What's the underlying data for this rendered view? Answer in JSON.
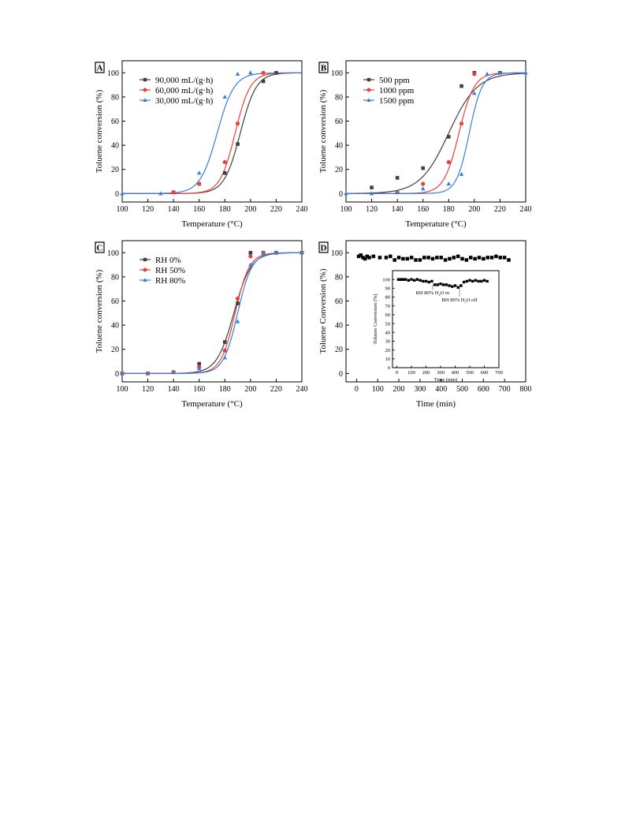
{
  "colors": {
    "black": "#404040",
    "red": "#e8403a",
    "blue": "#3a7fd6"
  },
  "chart_data": [
    {
      "type": "scatter",
      "panel": "A",
      "xlabel": "Temperature (°C)",
      "ylabel": "Toluene conversion (%)",
      "xlim": [
        100,
        240
      ],
      "ylim": [
        -7,
        110
      ],
      "xticks": [
        100,
        120,
        140,
        160,
        180,
        200,
        220,
        240
      ],
      "yticks": [
        0,
        20,
        40,
        60,
        80,
        100
      ],
      "legend": "top-left",
      "series": [
        {
          "name": "90,000 mL/(g·h)",
          "color": "#404040",
          "marker": "square",
          "x": [
            140,
            160,
            180,
            190,
            210,
            220
          ],
          "y": [
            1,
            8,
            17,
            41,
            93,
            100
          ],
          "fit": {
            "t50": 192,
            "k": 0.16,
            "ymax": 100
          }
        },
        {
          "name": "60,000 mL/(g·h)",
          "color": "#e8403a",
          "marker": "circle",
          "x": [
            140,
            160,
            180,
            190,
            210
          ],
          "y": [
            1,
            8,
            26,
            58,
            100
          ],
          "fit": {
            "t50": 188,
            "k": 0.17,
            "ymax": 100
          }
        },
        {
          "name": "30,000 mL/(g·h)",
          "color": "#3a7fd6",
          "marker": "triangle",
          "x": [
            100,
            130,
            160,
            180,
            190,
            200
          ],
          "y": [
            0,
            0,
            17,
            80,
            99,
            100
          ],
          "fit": {
            "t50": 174,
            "k": 0.15,
            "ymax": 100
          }
        }
      ]
    },
    {
      "type": "scatter",
      "panel": "B",
      "xlabel": "Temperature (°C)",
      "ylabel": "Toluene conversion (%)",
      "xlim": [
        100,
        240
      ],
      "ylim": [
        -7,
        110
      ],
      "xticks": [
        100,
        120,
        140,
        160,
        180,
        200,
        220,
        240
      ],
      "yticks": [
        0,
        20,
        40,
        60,
        80,
        100
      ],
      "legend": "top-left",
      "series": [
        {
          "name": "500 ppm",
          "color": "#404040",
          "marker": "square",
          "x": [
            120,
            140,
            160,
            180,
            190,
            200,
            220
          ],
          "y": [
            5,
            13,
            21,
            47,
            89,
            100,
            100
          ],
          "fit": {
            "t50": 180,
            "k": 0.09,
            "ymax": 100
          }
        },
        {
          "name": "1000 ppm",
          "color": "#e8403a",
          "marker": "circle",
          "x": [
            140,
            160,
            180,
            190,
            200
          ],
          "y": [
            1,
            8,
            26,
            58,
            99
          ],
          "fit": {
            "t50": 188,
            "k": 0.17,
            "ymax": 100
          }
        },
        {
          "name": "1500 ppm",
          "color": "#3a7fd6",
          "marker": "triangle",
          "x": [
            100,
            120,
            140,
            160,
            180,
            190,
            200,
            210,
            220,
            240
          ],
          "y": [
            0,
            0,
            1,
            4,
            8,
            16,
            83,
            99,
            100,
            100
          ],
          "fit": {
            "t50": 196,
            "k": 0.2,
            "ymax": 100
          }
        }
      ]
    },
    {
      "type": "scatter",
      "panel": "C",
      "xlabel": "Temperature (°C)",
      "ylabel": "Toluene conversion (%)",
      "xlim": [
        100,
        240
      ],
      "ylim": [
        -7,
        110
      ],
      "xticks": [
        100,
        120,
        140,
        160,
        180,
        200,
        220,
        240
      ],
      "yticks": [
        0,
        20,
        40,
        60,
        80,
        100
      ],
      "legend": "top-left",
      "series": [
        {
          "name": "RH 0%",
          "color": "#404040",
          "marker": "square",
          "x": [
            100,
            120,
            140,
            160,
            180,
            190,
            200,
            210,
            220,
            240
          ],
          "y": [
            0,
            0,
            1,
            8,
            26,
            58,
            100,
            100,
            100,
            100
          ],
          "fit": {
            "t50": 187,
            "k": 0.15,
            "ymax": 100
          }
        },
        {
          "name": "RH 50%",
          "color": "#e8403a",
          "marker": "circle",
          "x": [
            100,
            120,
            140,
            160,
            180,
            190,
            200,
            210,
            220,
            240
          ],
          "y": [
            0,
            0,
            1,
            5,
            19,
            62,
            97,
            100,
            100,
            100
          ],
          "fit": {
            "t50": 188,
            "k": 0.18,
            "ymax": 100
          }
        },
        {
          "name": "RH 80%",
          "color": "#3a7fd6",
          "marker": "triangle",
          "x": [
            100,
            120,
            140,
            160,
            180,
            190,
            200,
            210,
            220,
            240
          ],
          "y": [
            0,
            0,
            1,
            4,
            13,
            43,
            90,
            99,
            100,
            100
          ],
          "fit": {
            "t50": 190,
            "k": 0.18,
            "ymax": 100
          }
        }
      ]
    },
    {
      "type": "scatter",
      "panel": "D",
      "xlabel": "Time (min)",
      "ylabel": "Toluene Conversion (%)",
      "xlim": [
        -50,
        800
      ],
      "ylim": [
        -7,
        110
      ],
      "xticks": [
        0,
        100,
        200,
        300,
        400,
        500,
        600,
        700,
        800
      ],
      "yticks": [
        0,
        20,
        40,
        60,
        80,
        100
      ],
      "series": [
        {
          "name": "",
          "color": "#000000",
          "marker": "square",
          "x": [
            10,
            20,
            30,
            40,
            50,
            60,
            80,
            110,
            140,
            160,
            180,
            200,
            220,
            240,
            260,
            280,
            300,
            320,
            340,
            360,
            380,
            400,
            420,
            440,
            460,
            480,
            500,
            520,
            540,
            560,
            580,
            600,
            620,
            640,
            660,
            680,
            700,
            720
          ],
          "y": [
            97,
            98,
            96,
            95,
            97,
            96,
            97,
            96,
            96,
            97,
            94,
            96,
            95,
            95,
            96,
            94,
            94,
            96,
            96,
            95,
            96,
            96,
            94,
            95,
            96,
            97,
            95,
            94,
            96,
            95,
            96,
            95,
            96,
            96,
            97,
            96,
            96,
            94
          ]
        }
      ],
      "inset": {
        "xlabel": "Time (min)",
        "ylabel": "Toluene Conversion (%)",
        "xlim": [
          -30,
          700
        ],
        "ylim": [
          0,
          110
        ],
        "xticks": [
          0,
          100,
          200,
          300,
          400,
          500,
          600,
          700
        ],
        "yticks": [
          0,
          10,
          20,
          30,
          40,
          50,
          60,
          70,
          80,
          90,
          100
        ],
        "annotations": [
          {
            "text": "RH 80% H",
            "sub": "2",
            "tail": "O in",
            "x": 245
          },
          {
            "text": "RH 80% H",
            "sub": "2",
            "tail": "O off",
            "x": 430
          }
        ],
        "series": [
          {
            "name": "",
            "color": "#000000",
            "marker": "square",
            "x": [
              10,
              20,
              30,
              40,
              50,
              60,
              80,
              100,
              120,
              140,
              160,
              180,
              200,
              220,
              240,
              260,
              280,
              300,
              320,
              340,
              360,
              380,
              400,
              420,
              440,
              460,
              480,
              500,
              520,
              540,
              560,
              580,
              600,
              620
            ],
            "y": [
              100,
              100,
              100,
              100,
              100,
              100,
              99,
              100,
              99,
              100,
              99,
              98,
              98,
              97,
              98,
              94,
              94,
              95,
              94,
              94,
              93,
              92,
              93,
              91,
              93,
              97,
              98,
              99,
              98,
              99,
              98,
              98,
              99,
              98
            ]
          }
        ]
      }
    }
  ],
  "panel_tags": {
    "a": "A",
    "b": "B",
    "c": "C",
    "d": "D"
  }
}
